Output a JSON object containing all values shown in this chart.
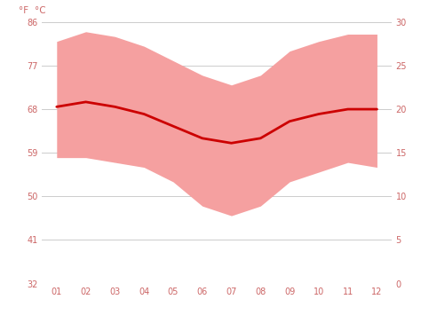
{
  "months": [
    1,
    2,
    3,
    4,
    5,
    6,
    7,
    8,
    9,
    10,
    11,
    12
  ],
  "month_labels": [
    "01",
    "02",
    "03",
    "04",
    "05",
    "06",
    "07",
    "08",
    "09",
    "10",
    "11",
    "12"
  ],
  "avg_temp_f": [
    68.5,
    69.5,
    68.5,
    67.0,
    64.5,
    62.0,
    61.0,
    62.0,
    65.5,
    67.0,
    68.0,
    68.0
  ],
  "high_temp_f": [
    82.0,
    84.0,
    83.0,
    81.0,
    78.0,
    75.0,
    73.0,
    75.0,
    80.0,
    82.0,
    83.5,
    83.5
  ],
  "low_temp_f": [
    58.0,
    58.0,
    57.0,
    56.0,
    53.0,
    48.0,
    46.0,
    48.0,
    53.0,
    55.0,
    57.0,
    56.0
  ],
  "ylim_f": [
    32,
    86
  ],
  "yticks_f": [
    32,
    41,
    50,
    59,
    68,
    77,
    86
  ],
  "yticks_c": [
    0,
    5,
    10,
    15,
    20,
    25,
    30
  ],
  "line_color": "#cc0000",
  "band_color": "#f5a0a0",
  "bg_color": "#ffffff",
  "grid_color": "#cccccc",
  "label_color": "#cc6666",
  "axis_label_f": "°F",
  "axis_label_c": "°C"
}
